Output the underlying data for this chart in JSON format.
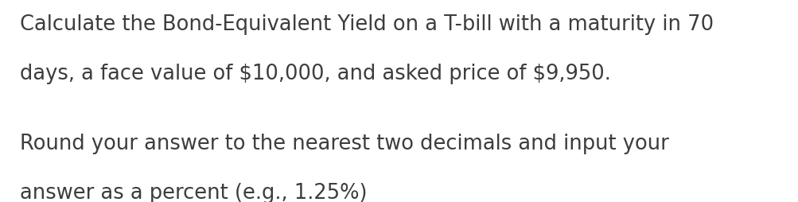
{
  "background_color": "#ffffff",
  "text_color": "#3d3d3d",
  "line1": "Calculate the Bond-Equivalent Yield on a T-bill with a maturity in 70",
  "line2": "days, a face value of $10,000, and asked price of $9,950.",
  "line3": "Round your answer to the nearest two decimals and input your",
  "line4": "answer as a percent (e.g., 1.25%)",
  "font_size": 18.5,
  "fig_width": 10.04,
  "fig_height": 2.54,
  "dpi": 100
}
